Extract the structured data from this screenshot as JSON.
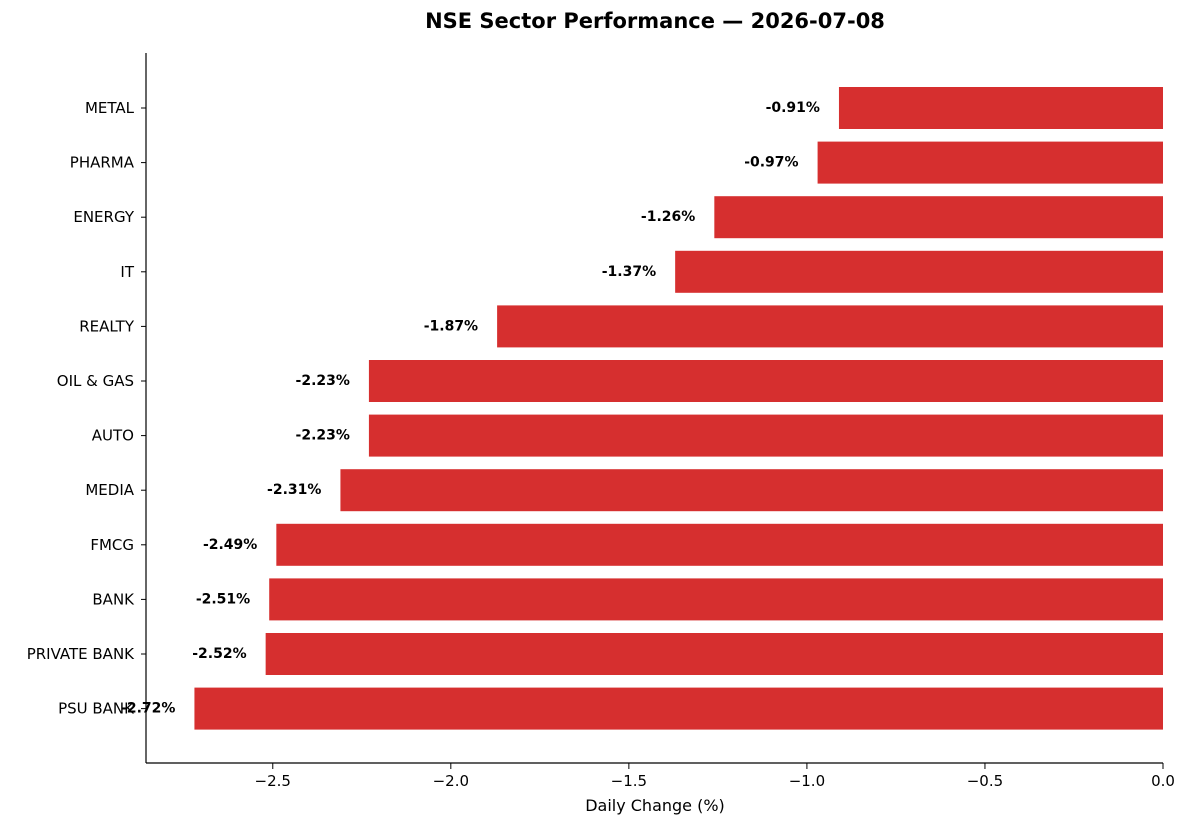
{
  "chart_data": {
    "type": "bar",
    "orientation": "horizontal",
    "title": "NSE Sector Performance — 2026-07-08",
    "xlabel": "Daily Change (%)",
    "ylabel": "",
    "categories": [
      "METAL",
      "PHARMA",
      "ENERGY",
      "IT",
      "REALTY",
      "OIL & GAS",
      "AUTO",
      "MEDIA",
      "FMCG",
      "BANK",
      "PRIVATE BANK",
      "PSU BANK"
    ],
    "values": [
      -0.91,
      -0.97,
      -1.26,
      -1.37,
      -1.87,
      -2.23,
      -2.23,
      -2.31,
      -2.49,
      -2.51,
      -2.52,
      -2.72
    ],
    "value_labels": [
      "-0.91%",
      "-0.97%",
      "-1.26%",
      "-1.37%",
      "-1.87%",
      "-2.23%",
      "-2.23%",
      "-2.31%",
      "-2.49%",
      "-2.51%",
      "-2.52%",
      "-2.72%"
    ],
    "xlim": [
      -2.856,
      0.0
    ],
    "xticks": [
      -2.5,
      -2.0,
      -1.5,
      -1.0,
      -0.5,
      0.0
    ],
    "xtick_labels": [
      "−2.5",
      "−2.0",
      "−1.5",
      "−1.0",
      "−0.5",
      "0.0"
    ],
    "bar_color": "#d62f2f",
    "grid": false,
    "legend": "none"
  }
}
